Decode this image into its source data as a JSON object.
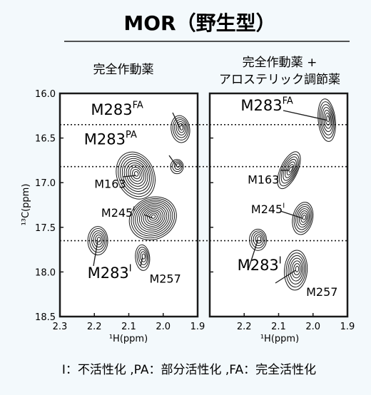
{
  "title": "MOR（野生型）",
  "footnote": "I：不活性化 ,PA：部分活性化 ,FA：完全活性化",
  "y_axis": {
    "label": "¹³C(ppm)",
    "min": 16.0,
    "max": 18.5,
    "ticks": [
      "16.0",
      "16.5",
      "17.0",
      "17.5",
      "18.0",
      "18.5"
    ]
  },
  "reference_lines_ppm_13C": [
    16.35,
    16.82,
    17.65
  ],
  "colors": {
    "background": "#f3f9fc",
    "ink": "#1a1a1a",
    "panel": "#ffffff"
  },
  "chart_data": [
    {
      "type": "scatter",
      "title": "完全作動薬",
      "xlabel": "¹H(ppm)",
      "ylabel": "¹³C(ppm)",
      "xlim": [
        2.3,
        1.9
      ],
      "ylim": [
        18.5,
        16.0
      ],
      "x_ticks": [
        "2.3",
        "2.2",
        "2.1",
        "2.0",
        "1.9"
      ],
      "peaks": [
        {
          "label": "M283",
          "sup": "FA",
          "x": 1.95,
          "y": 16.4,
          "label_x": 2.21,
          "label_y": 16.24,
          "big": true
        },
        {
          "label": "M283",
          "sup": "PA",
          "x": 1.96,
          "y": 16.82,
          "label_x": 2.23,
          "label_y": 16.57,
          "big": true
        },
        {
          "label": "M163",
          "sup": "",
          "x": 2.08,
          "y": 16.92,
          "label_x": 2.2,
          "label_y": 17.06,
          "big": false
        },
        {
          "label": "M245",
          "sup": "I",
          "x": 2.03,
          "y": 17.4,
          "label_x": 2.18,
          "label_y": 17.38,
          "big": false
        },
        {
          "label": "M283",
          "sup": "I",
          "x": 2.19,
          "y": 17.65,
          "label_x": 2.22,
          "label_y": 18.07,
          "big": true
        },
        {
          "label": "M257",
          "sup": "",
          "x": 2.06,
          "y": 17.84,
          "label_x": 2.04,
          "label_y": 18.12,
          "big": false
        }
      ]
    },
    {
      "type": "scatter",
      "title": "完全作動薬 + アロステリック調節薬",
      "title_lines": [
        "完全作動薬 +",
        "アロステリック調節薬"
      ],
      "xlabel": "¹H(ppm)",
      "ylabel": "¹³C(ppm)",
      "xlim": [
        2.3,
        1.9
      ],
      "ylim": [
        18.5,
        16.0
      ],
      "x_ticks": [
        "2.2",
        "2.1",
        "2.0",
        "1.9"
      ],
      "peaks": [
        {
          "label": "M283",
          "sup": "FA",
          "x": 1.96,
          "y": 16.3,
          "label_x": 2.21,
          "label_y": 16.19,
          "big": true
        },
        {
          "label": "M163",
          "sup": "",
          "x": 2.07,
          "y": 16.86,
          "label_x": 2.19,
          "label_y": 17.01,
          "big": false
        },
        {
          "label": "M245",
          "sup": "I",
          "x": 2.03,
          "y": 17.4,
          "label_x": 2.18,
          "label_y": 17.34,
          "big": false
        },
        {
          "label": "M283",
          "sup": "I",
          "x": 2.16,
          "y": 17.64,
          "label_x": 2.22,
          "label_y": 17.98,
          "big": true
        },
        {
          "label": "M257",
          "sup": "",
          "x": 2.05,
          "y": 17.98,
          "label_x": 2.02,
          "label_y": 18.27,
          "big": false
        }
      ]
    }
  ]
}
